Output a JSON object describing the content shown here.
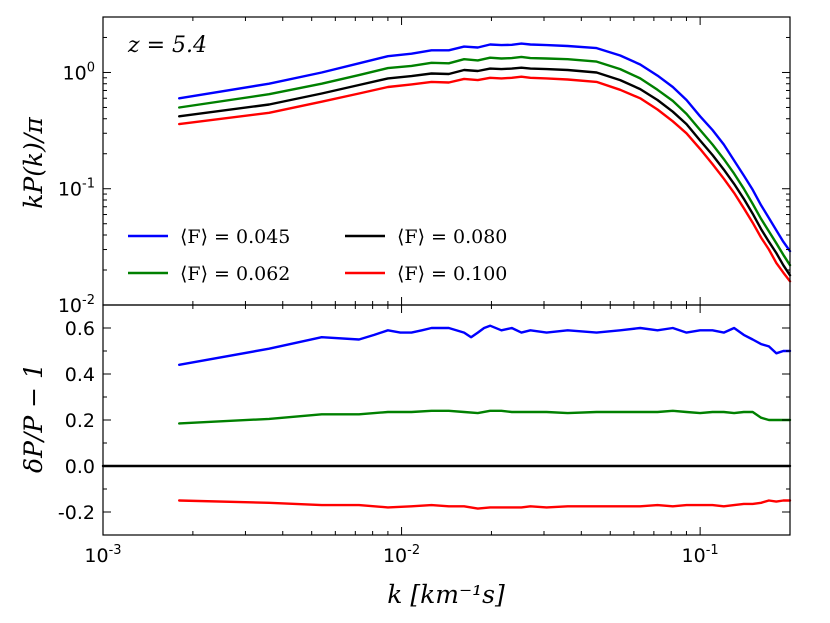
{
  "chart_data": [
    {
      "type": "line",
      "panel": "top",
      "xscale": "log",
      "yscale": "log",
      "xlim": [
        0.001,
        0.2
      ],
      "ylim": [
        0.01,
        3.0
      ],
      "xlabel": "",
      "ylabel": "kP(k)/π",
      "annotation": "z = 5.4",
      "x_tick_labels": [],
      "y_ticks": [
        {
          "value": 0.01,
          "base": "10",
          "exp": "-2"
        },
        {
          "value": 0.1,
          "base": "10",
          "exp": "-1"
        },
        {
          "value": 1.0,
          "base": "10",
          "exp": "0"
        }
      ],
      "legend_location": "lower-left",
      "series": [
        {
          "name": "⟨F⟩ = 0.045",
          "color": "#0000ff",
          "x": [
            0.0018,
            0.0036,
            0.0054,
            0.0072,
            0.009,
            0.0108,
            0.0126,
            0.0144,
            0.0162,
            0.018,
            0.0198,
            0.0216,
            0.0234,
            0.0252,
            0.027,
            0.0306,
            0.036,
            0.045,
            0.054,
            0.063,
            0.072,
            0.081,
            0.09,
            0.1,
            0.11,
            0.12,
            0.13,
            0.14,
            0.15,
            0.16,
            0.17,
            0.18,
            0.19,
            0.2
          ],
          "y": [
            0.6,
            0.8,
            1.0,
            1.2,
            1.38,
            1.45,
            1.55,
            1.55,
            1.67,
            1.64,
            1.74,
            1.72,
            1.73,
            1.77,
            1.74,
            1.72,
            1.69,
            1.62,
            1.4,
            1.17,
            0.94,
            0.75,
            0.58,
            0.42,
            0.32,
            0.24,
            0.175,
            0.13,
            0.098,
            0.072,
            0.056,
            0.044,
            0.035,
            0.029
          ]
        },
        {
          "name": "⟨F⟩ = 0.062",
          "color": "#008000",
          "x": [
            0.0018,
            0.0036,
            0.0054,
            0.0072,
            0.009,
            0.0108,
            0.0126,
            0.0144,
            0.0162,
            0.018,
            0.0198,
            0.0216,
            0.0234,
            0.0252,
            0.027,
            0.0306,
            0.036,
            0.045,
            0.054,
            0.063,
            0.072,
            0.081,
            0.09,
            0.1,
            0.11,
            0.12,
            0.13,
            0.14,
            0.15,
            0.16,
            0.17,
            0.18,
            0.19,
            0.2
          ],
          "y": [
            0.5,
            0.65,
            0.8,
            0.95,
            1.09,
            1.14,
            1.21,
            1.2,
            1.3,
            1.27,
            1.34,
            1.32,
            1.33,
            1.36,
            1.33,
            1.32,
            1.3,
            1.24,
            1.07,
            0.89,
            0.71,
            0.57,
            0.44,
            0.32,
            0.24,
            0.18,
            0.135,
            0.1,
            0.074,
            0.055,
            0.043,
            0.034,
            0.027,
            0.022
          ]
        },
        {
          "name": "⟨F⟩ = 0.080",
          "color": "#000000",
          "x": [
            0.0018,
            0.0036,
            0.0054,
            0.0072,
            0.009,
            0.0108,
            0.0126,
            0.0144,
            0.0162,
            0.018,
            0.0198,
            0.0216,
            0.0234,
            0.0252,
            0.027,
            0.0306,
            0.036,
            0.045,
            0.054,
            0.063,
            0.072,
            0.081,
            0.09,
            0.1,
            0.11,
            0.12,
            0.13,
            0.14,
            0.15,
            0.16,
            0.17,
            0.18,
            0.19,
            0.2
          ],
          "y": [
            0.42,
            0.53,
            0.66,
            0.78,
            0.89,
            0.93,
            0.98,
            0.97,
            1.05,
            1.03,
            1.08,
            1.07,
            1.08,
            1.1,
            1.08,
            1.07,
            1.05,
            1.0,
            0.86,
            0.72,
            0.58,
            0.46,
            0.36,
            0.26,
            0.195,
            0.146,
            0.11,
            0.082,
            0.061,
            0.045,
            0.035,
            0.028,
            0.022,
            0.018
          ]
        },
        {
          "name": "⟨F⟩ = 0.100",
          "color": "#ff0000",
          "x": [
            0.0018,
            0.0036,
            0.0054,
            0.0072,
            0.009,
            0.0108,
            0.0126,
            0.0144,
            0.0162,
            0.018,
            0.0198,
            0.0216,
            0.0234,
            0.0252,
            0.027,
            0.0306,
            0.036,
            0.045,
            0.054,
            0.063,
            0.072,
            0.081,
            0.09,
            0.1,
            0.11,
            0.12,
            0.13,
            0.14,
            0.15,
            0.16,
            0.17,
            0.18,
            0.19,
            0.2
          ],
          "y": [
            0.36,
            0.45,
            0.56,
            0.66,
            0.75,
            0.79,
            0.83,
            0.82,
            0.88,
            0.86,
            0.9,
            0.89,
            0.9,
            0.92,
            0.9,
            0.89,
            0.87,
            0.83,
            0.71,
            0.6,
            0.48,
            0.38,
            0.3,
            0.22,
            0.163,
            0.122,
            0.092,
            0.068,
            0.051,
            0.038,
            0.03,
            0.023,
            0.019,
            0.016
          ]
        }
      ]
    },
    {
      "type": "line",
      "panel": "bottom",
      "xscale": "log",
      "yscale": "linear",
      "xlim": [
        0.001,
        0.2
      ],
      "ylim": [
        -0.3,
        0.7
      ],
      "xlabel": "k [km⁻¹s]",
      "ylabel": "δP/P − 1",
      "x_ticks": [
        {
          "value": 0.001,
          "base": "10",
          "exp": "-3"
        },
        {
          "value": 0.01,
          "base": "10",
          "exp": "-2"
        },
        {
          "value": 0.1,
          "base": "10",
          "exp": "-1"
        }
      ],
      "y_ticks": [
        {
          "value": -0.2,
          "label": "-0.2"
        },
        {
          "value": 0.0,
          "label": "0.0"
        },
        {
          "value": 0.2,
          "label": "0.2"
        },
        {
          "value": 0.4,
          "label": "0.4"
        },
        {
          "value": 0.6,
          "label": "0.6"
        }
      ],
      "series": [
        {
          "name": "⟨F⟩ = 0.045",
          "color": "#0000ff",
          "x": [
            0.0018,
            0.0036,
            0.0054,
            0.0072,
            0.0081,
            0.009,
            0.0099,
            0.0108,
            0.0117,
            0.0126,
            0.0144,
            0.0162,
            0.0171,
            0.018,
            0.0189,
            0.0198,
            0.0216,
            0.0234,
            0.0252,
            0.027,
            0.0306,
            0.036,
            0.045,
            0.054,
            0.063,
            0.072,
            0.081,
            0.09,
            0.1,
            0.11,
            0.12,
            0.13,
            0.14,
            0.15,
            0.16,
            0.17,
            0.18,
            0.19,
            0.2
          ],
          "y": [
            0.44,
            0.51,
            0.56,
            0.55,
            0.57,
            0.59,
            0.58,
            0.58,
            0.59,
            0.6,
            0.6,
            0.58,
            0.56,
            0.58,
            0.6,
            0.61,
            0.59,
            0.6,
            0.58,
            0.59,
            0.58,
            0.59,
            0.58,
            0.59,
            0.6,
            0.59,
            0.6,
            0.58,
            0.59,
            0.59,
            0.58,
            0.6,
            0.57,
            0.55,
            0.53,
            0.52,
            0.49,
            0.5,
            0.5
          ]
        },
        {
          "name": "⟨F⟩ = 0.062",
          "color": "#008000",
          "x": [
            0.0018,
            0.0036,
            0.0054,
            0.0072,
            0.009,
            0.0108,
            0.0126,
            0.0144,
            0.0162,
            0.018,
            0.0198,
            0.0216,
            0.0234,
            0.0252,
            0.027,
            0.0306,
            0.036,
            0.045,
            0.054,
            0.063,
            0.072,
            0.081,
            0.09,
            0.1,
            0.11,
            0.12,
            0.13,
            0.14,
            0.15,
            0.16,
            0.17,
            0.18,
            0.19,
            0.2
          ],
          "y": [
            0.185,
            0.205,
            0.225,
            0.225,
            0.235,
            0.235,
            0.24,
            0.24,
            0.235,
            0.23,
            0.24,
            0.24,
            0.235,
            0.235,
            0.235,
            0.235,
            0.23,
            0.235,
            0.235,
            0.235,
            0.235,
            0.24,
            0.235,
            0.23,
            0.235,
            0.235,
            0.23,
            0.235,
            0.235,
            0.21,
            0.2,
            0.2,
            0.2,
            0.2
          ]
        },
        {
          "name": "⟨F⟩ = 0.080",
          "color": "#000000",
          "x": [
            0.001,
            0.2
          ],
          "y": [
            0.0,
            0.0
          ]
        },
        {
          "name": "⟨F⟩ = 0.100",
          "color": "#ff0000",
          "x": [
            0.0018,
            0.0036,
            0.0054,
            0.0072,
            0.009,
            0.0108,
            0.0126,
            0.0144,
            0.0162,
            0.018,
            0.0198,
            0.0216,
            0.0234,
            0.0252,
            0.027,
            0.0306,
            0.036,
            0.045,
            0.054,
            0.063,
            0.072,
            0.081,
            0.09,
            0.1,
            0.11,
            0.12,
            0.13,
            0.14,
            0.15,
            0.16,
            0.17,
            0.18,
            0.19,
            0.2
          ],
          "y": [
            -0.15,
            -0.16,
            -0.17,
            -0.17,
            -0.18,
            -0.175,
            -0.17,
            -0.175,
            -0.175,
            -0.185,
            -0.18,
            -0.18,
            -0.18,
            -0.18,
            -0.175,
            -0.18,
            -0.175,
            -0.175,
            -0.175,
            -0.175,
            -0.17,
            -0.175,
            -0.17,
            -0.17,
            -0.17,
            -0.175,
            -0.17,
            -0.165,
            -0.165,
            -0.16,
            -0.15,
            -0.155,
            -0.15,
            -0.15
          ]
        }
      ]
    }
  ]
}
